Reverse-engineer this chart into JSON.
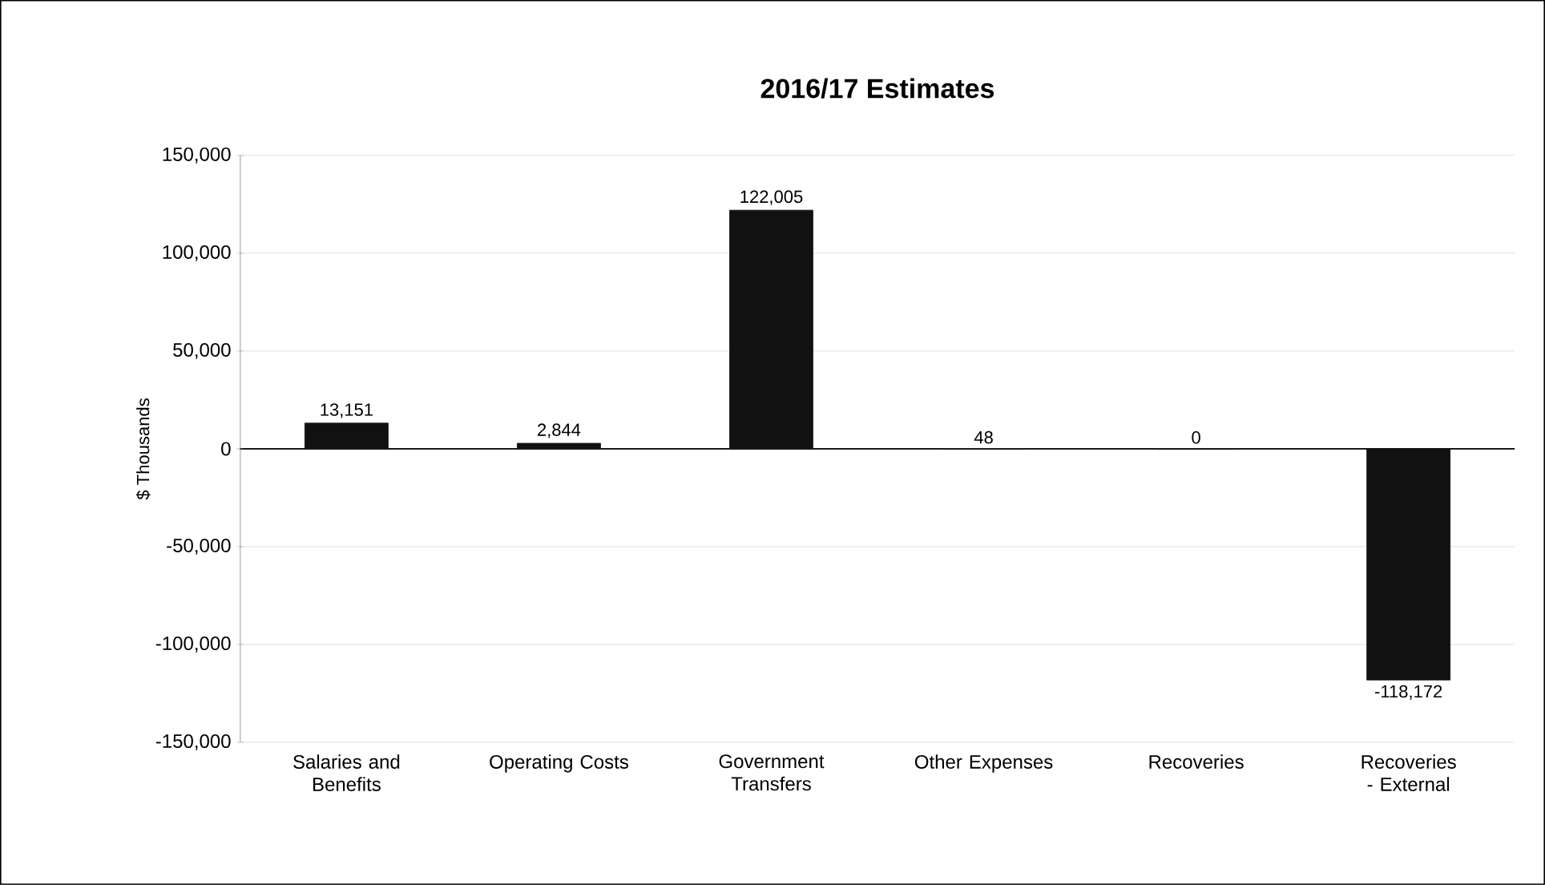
{
  "chart_data": {
    "type": "bar",
    "title": "2016/17 Estimates",
    "ylabel": "$ Thousands",
    "categories": [
      "Salaries and Benefits",
      "Operating Costs",
      "Government Transfers",
      "Other Expenses",
      "Recoveries",
      "Recoveries - External"
    ],
    "values": [
      13151,
      2844,
      122005,
      48,
      0,
      -118172
    ],
    "value_labels": [
      "13,151",
      "2,844",
      "122,005",
      "48",
      "0",
      "-118,172"
    ],
    "color": "#111111",
    "ylim": [
      -150000,
      150000
    ],
    "yticks": [
      {
        "value": -150000,
        "label": "-150,000"
      },
      {
        "value": -100000,
        "label": "-100,000"
      },
      {
        "value": -50000,
        "label": "-50,000"
      },
      {
        "value": 0,
        "label": "0"
      },
      {
        "value": 50000,
        "label": "50,000"
      },
      {
        "value": 100000,
        "label": "100,000"
      },
      {
        "value": 150000,
        "label": "150,000"
      }
    ],
    "grid": "y"
  }
}
